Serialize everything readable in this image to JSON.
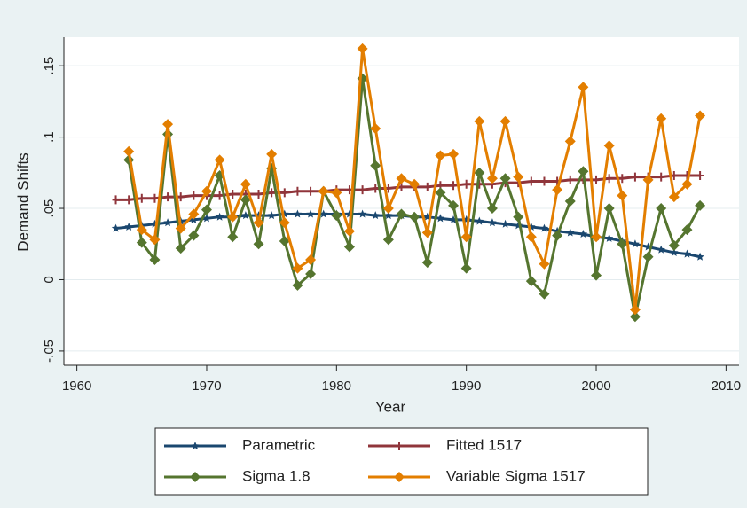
{
  "chart_data": {
    "type": "line",
    "x_label": "Year",
    "y_label": "Demand Shifts",
    "x": [
      1963,
      1964,
      1965,
      1966,
      1967,
      1968,
      1969,
      1970,
      1971,
      1972,
      1973,
      1974,
      1975,
      1976,
      1977,
      1978,
      1979,
      1980,
      1981,
      1982,
      1983,
      1984,
      1985,
      1986,
      1987,
      1988,
      1989,
      1990,
      1991,
      1992,
      1993,
      1994,
      1995,
      1996,
      1997,
      1998,
      1999,
      2000,
      2001,
      2002,
      2003,
      2004,
      2005,
      2006,
      2007,
      2008
    ],
    "series": [
      {
        "name": "Parametric",
        "color": "#1a476f",
        "marker": "star",
        "values": [
          0.036,
          0.037,
          0.038,
          0.039,
          0.04,
          0.041,
          0.042,
          0.043,
          0.044,
          0.044,
          0.045,
          0.045,
          0.045,
          0.046,
          0.046,
          0.046,
          0.046,
          0.046,
          0.046,
          0.046,
          0.045,
          0.045,
          0.045,
          0.044,
          0.044,
          0.043,
          0.042,
          0.042,
          0.041,
          0.04,
          0.039,
          0.038,
          0.037,
          0.036,
          0.034,
          0.033,
          0.032,
          0.03,
          0.029,
          0.027,
          0.025,
          0.023,
          0.021,
          0.019,
          0.018,
          0.016
        ]
      },
      {
        "name": "Fitted 1517",
        "color": "#90353b",
        "marker": "plus",
        "values": [
          0.056,
          0.056,
          0.057,
          0.057,
          0.058,
          0.058,
          0.059,
          0.059,
          0.059,
          0.06,
          0.06,
          0.06,
          0.061,
          0.061,
          0.062,
          0.062,
          0.062,
          0.063,
          0.063,
          0.063,
          0.064,
          0.064,
          0.065,
          0.065,
          0.065,
          0.066,
          0.066,
          0.067,
          0.067,
          0.067,
          0.068,
          0.068,
          0.069,
          0.069,
          0.069,
          0.07,
          0.07,
          0.07,
          0.071,
          0.071,
          0.072,
          0.072,
          0.072,
          0.073,
          0.073,
          0.073
        ]
      },
      {
        "name": "Sigma 1.8",
        "color": "#55752f",
        "marker": "diamond",
        "values": [
          null,
          0.084,
          0.026,
          0.014,
          0.102,
          0.022,
          0.031,
          0.049,
          0.073,
          0.03,
          0.056,
          0.025,
          0.078,
          0.027,
          -0.004,
          0.004,
          0.062,
          0.045,
          0.023,
          0.141,
          0.08,
          0.028,
          0.046,
          0.044,
          0.012,
          0.061,
          0.052,
          0.008,
          0.075,
          0.05,
          0.071,
          0.044,
          -0.001,
          -0.01,
          0.031,
          0.055,
          0.076,
          0.003,
          0.05,
          0.025,
          -0.026,
          0.016,
          0.05,
          0.024,
          0.035,
          0.052
        ]
      },
      {
        "name": "Variable Sigma 1517",
        "color": "#e37e00",
        "marker": "diamond",
        "values": [
          null,
          0.09,
          0.035,
          0.028,
          0.109,
          0.036,
          0.046,
          0.062,
          0.084,
          0.044,
          0.067,
          0.04,
          0.088,
          0.04,
          0.008,
          0.014,
          0.062,
          0.061,
          0.034,
          0.162,
          0.106,
          0.05,
          0.071,
          0.067,
          0.033,
          0.087,
          0.088,
          0.03,
          0.111,
          0.071,
          0.111,
          0.072,
          0.03,
          0.011,
          0.063,
          0.097,
          0.135,
          0.03,
          0.094,
          0.059,
          -0.021,
          0.07,
          0.113,
          0.058,
          0.067,
          0.115
        ]
      }
    ],
    "xlim": [
      1959,
      2011
    ],
    "xticks": [
      1960,
      1970,
      1980,
      1990,
      2000,
      2010
    ],
    "ylim": [
      -0.06,
      0.17
    ],
    "yticks": [
      {
        "value": -0.05,
        "label": "-.05"
      },
      0,
      {
        "value": 0.05,
        "label": ".05"
      },
      {
        "value": 0.1,
        "label": ".1"
      },
      {
        "value": 0.15,
        "label": ".15"
      }
    ],
    "grid": true,
    "legend": "bottom"
  }
}
